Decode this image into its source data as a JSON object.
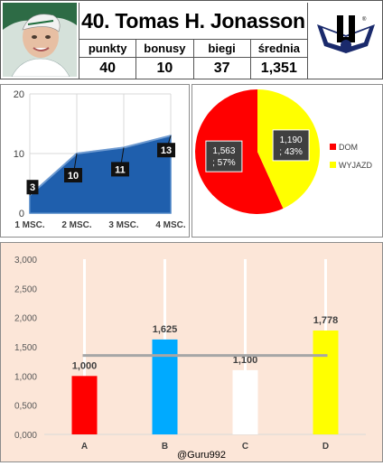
{
  "header": {
    "title": "40. Tomas H. Jonasson",
    "stats_labels": [
      "punkty",
      "bonusy",
      "biegi",
      "średnia"
    ],
    "stats_values": [
      "40",
      "10",
      "37",
      "1,351"
    ]
  },
  "chart_data": [
    {
      "type": "area",
      "categories": [
        "1 MSC.",
        "2 MSC.",
        "3 MSC.",
        "4 MSC."
      ],
      "values": [
        3,
        10,
        11,
        13
      ],
      "data_labels": [
        "3",
        "10",
        "11",
        "13"
      ],
      "ylim": [
        0,
        20
      ],
      "yticks": [
        "0",
        "10",
        "20"
      ],
      "grid": true,
      "colors": {
        "fill": "#1f5fad",
        "fill_light": "#4f86c6",
        "label_bg": "#111111"
      }
    },
    {
      "type": "pie",
      "series": [
        {
          "name": "DOM",
          "value": 1.563,
          "percent": 57,
          "label": "1,563\n; 57%",
          "color": "#ff0000"
        },
        {
          "name": "WYJAZD",
          "value": 1.19,
          "percent": 43,
          "label": "1,190\n; 43%",
          "color": "#ffff00"
        }
      ],
      "legend_position": "right"
    },
    {
      "type": "bar",
      "categories": [
        "A",
        "B",
        "C",
        "D"
      ],
      "values": [
        1.0,
        1.625,
        1.1,
        1.778
      ],
      "data_labels": [
        "1,000",
        "1,625",
        "1,100",
        "1,778"
      ],
      "colors": [
        "#ff0000",
        "#00aaff",
        "#ffffff",
        "#ffff00"
      ],
      "reference_line": 1.351,
      "ylim": [
        0,
        3
      ],
      "yticks": [
        "0,000",
        "0,500",
        "1,000",
        "1,500",
        "2,000",
        "2,500",
        "3,000"
      ],
      "grid": true,
      "background": "#fce6d8",
      "footer": "@Guru992"
    }
  ],
  "colors": {
    "border": "#8c8c8c",
    "grid": "#d9d9d9"
  }
}
